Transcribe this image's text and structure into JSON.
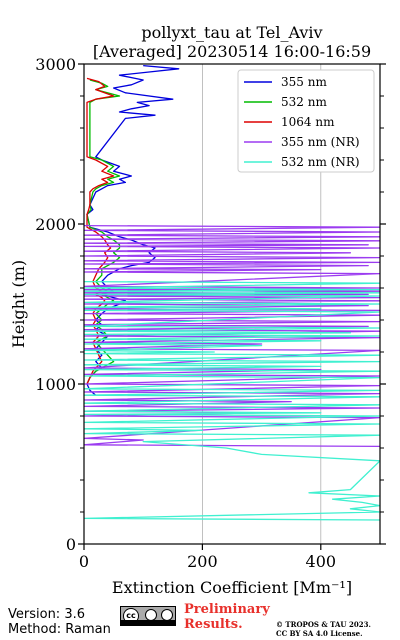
{
  "chart_data": {
    "type": "line",
    "title": "pollyxt_tau at Tel_Aviv",
    "subtitle": "[Averaged] 20230514 16:00-16:59",
    "xlabel": "Extinction Coefficient [Mm⁻¹]",
    "ylabel": "Height (m)",
    "xlim": [
      0,
      500
    ],
    "ylim": [
      0,
      3000
    ],
    "xticks": [
      0,
      200,
      400
    ],
    "yticks": [
      0,
      1000,
      2000,
      3000
    ],
    "grid": "x",
    "legend_position": "top-right",
    "series": [
      {
        "name": "355 nm",
        "color": "#0000dd",
        "points": [
          [
            100,
            2990
          ],
          [
            160,
            2970
          ],
          [
            110,
            2950
          ],
          [
            60,
            2930
          ],
          [
            100,
            2900
          ],
          [
            80,
            2870
          ],
          [
            50,
            2850
          ],
          [
            70,
            2820
          ],
          [
            150,
            2780
          ],
          [
            90,
            2760
          ],
          [
            110,
            2740
          ],
          [
            80,
            2720
          ],
          [
            60,
            2700
          ],
          [
            120,
            2680
          ],
          [
            70,
            2660
          ],
          [
            20,
            2420
          ],
          [
            30,
            2400
          ],
          [
            60,
            2360
          ],
          [
            50,
            2330
          ],
          [
            80,
            2300
          ],
          [
            60,
            2280
          ],
          [
            70,
            2260
          ],
          [
            40,
            2240
          ],
          [
            30,
            2220
          ],
          [
            20,
            2200
          ],
          [
            10,
            2120
          ],
          [
            15,
            2090
          ],
          [
            5,
            2060
          ],
          [
            10,
            1980
          ],
          [
            40,
            1950
          ],
          [
            60,
            1920
          ],
          [
            80,
            1900
          ],
          [
            100,
            1870
          ],
          [
            120,
            1850
          ],
          [
            110,
            1820
          ],
          [
            120,
            1790
          ],
          [
            110,
            1760
          ],
          [
            80,
            1740
          ],
          [
            60,
            1720
          ],
          [
            40,
            1680
          ],
          [
            30,
            1640
          ],
          [
            40,
            1600
          ],
          [
            50,
            1580
          ],
          [
            30,
            1560
          ],
          [
            50,
            1540
          ],
          [
            70,
            1520
          ],
          [
            60,
            1500
          ],
          [
            40,
            1470
          ],
          [
            30,
            1440
          ],
          [
            20,
            1400
          ],
          [
            30,
            1370
          ],
          [
            20,
            1340
          ],
          [
            40,
            1300
          ],
          [
            30,
            1260
          ],
          [
            20,
            1220
          ],
          [
            30,
            1180
          ],
          [
            20,
            1140
          ],
          [
            30,
            1100
          ],
          [
            20,
            1080
          ],
          [
            10,
            1040
          ],
          [
            5,
            1000
          ],
          [
            10,
            960
          ],
          [
            20,
            930
          ]
        ]
      },
      {
        "name": "532 nm",
        "color": "#00bb00",
        "points": [
          [
            10,
            2900
          ],
          [
            30,
            2880
          ],
          [
            40,
            2860
          ],
          [
            20,
            2840
          ],
          [
            60,
            2800
          ],
          [
            20,
            2780
          ],
          [
            10,
            2760
          ],
          [
            10,
            2420
          ],
          [
            30,
            2400
          ],
          [
            50,
            2360
          ],
          [
            40,
            2330
          ],
          [
            60,
            2300
          ],
          [
            40,
            2280
          ],
          [
            50,
            2260
          ],
          [
            30,
            2240
          ],
          [
            20,
            2220
          ],
          [
            15,
            2200
          ],
          [
            10,
            2120
          ],
          [
            12,
            2090
          ],
          [
            5,
            2060
          ],
          [
            10,
            1980
          ],
          [
            30,
            1950
          ],
          [
            40,
            1920
          ],
          [
            50,
            1900
          ],
          [
            60,
            1870
          ],
          [
            60,
            1850
          ],
          [
            50,
            1820
          ],
          [
            60,
            1790
          ],
          [
            50,
            1760
          ],
          [
            40,
            1740
          ],
          [
            30,
            1720
          ],
          [
            30,
            1680
          ],
          [
            20,
            1640
          ],
          [
            30,
            1600
          ],
          [
            40,
            1580
          ],
          [
            30,
            1560
          ],
          [
            40,
            1540
          ],
          [
            50,
            1520
          ],
          [
            40,
            1500
          ],
          [
            30,
            1470
          ],
          [
            20,
            1440
          ],
          [
            30,
            1400
          ],
          [
            20,
            1370
          ],
          [
            30,
            1340
          ],
          [
            40,
            1300
          ],
          [
            20,
            1260
          ],
          [
            30,
            1220
          ],
          [
            40,
            1180
          ],
          [
            50,
            1140
          ],
          [
            30,
            1100
          ],
          [
            20,
            1080
          ],
          [
            10,
            1040
          ],
          [
            5,
            1000
          ]
        ]
      },
      {
        "name": "1064 nm",
        "color": "#dd0000",
        "points": [
          [
            5,
            2910
          ],
          [
            25,
            2890
          ],
          [
            35,
            2860
          ],
          [
            20,
            2840
          ],
          [
            50,
            2800
          ],
          [
            20,
            2780
          ],
          [
            5,
            2760
          ],
          [
            5,
            2420
          ],
          [
            20,
            2400
          ],
          [
            40,
            2360
          ],
          [
            30,
            2330
          ],
          [
            50,
            2300
          ],
          [
            30,
            2280
          ],
          [
            40,
            2260
          ],
          [
            25,
            2240
          ],
          [
            15,
            2220
          ],
          [
            10,
            2200
          ],
          [
            10,
            2120
          ],
          [
            8,
            2090
          ],
          [
            5,
            2060
          ],
          [
            5,
            1980
          ],
          [
            20,
            1950
          ],
          [
            30,
            1920
          ],
          [
            35,
            1900
          ],
          [
            40,
            1870
          ],
          [
            45,
            1850
          ],
          [
            35,
            1820
          ],
          [
            40,
            1790
          ],
          [
            35,
            1760
          ],
          [
            30,
            1740
          ],
          [
            25,
            1720
          ],
          [
            20,
            1680
          ],
          [
            15,
            1640
          ],
          [
            20,
            1600
          ],
          [
            30,
            1580
          ],
          [
            20,
            1560
          ],
          [
            30,
            1540
          ],
          [
            35,
            1520
          ],
          [
            30,
            1500
          ],
          [
            20,
            1470
          ],
          [
            15,
            1440
          ],
          [
            20,
            1400
          ],
          [
            15,
            1370
          ],
          [
            20,
            1340
          ],
          [
            25,
            1300
          ],
          [
            15,
            1260
          ],
          [
            20,
            1220
          ],
          [
            25,
            1180
          ],
          [
            30,
            1140
          ],
          [
            20,
            1100
          ],
          [
            15,
            1080
          ],
          [
            10,
            1040
          ],
          [
            5,
            1000
          ]
        ]
      },
      {
        "name": "355 nm (NR)",
        "color": "#9b3cf0",
        "points": [
          [
            0,
            1990
          ],
          [
            500,
            1980
          ],
          [
            0,
            1960
          ],
          [
            500,
            1950
          ],
          [
            0,
            1930
          ],
          [
            500,
            1920
          ],
          [
            0,
            1905
          ],
          [
            500,
            1895
          ],
          [
            0,
            1880
          ],
          [
            480,
            1870
          ],
          [
            0,
            1860
          ],
          [
            500,
            1850
          ],
          [
            0,
            1830
          ],
          [
            450,
            1820
          ],
          [
            0,
            1800
          ],
          [
            500,
            1790
          ],
          [
            0,
            1770
          ],
          [
            500,
            1760
          ],
          [
            0,
            1750
          ],
          [
            480,
            1740
          ],
          [
            0,
            1720
          ],
          [
            400,
            1715
          ],
          [
            0,
            1700
          ],
          [
            500,
            1690
          ],
          [
            0,
            1610
          ],
          [
            500,
            1600
          ],
          [
            0,
            1590
          ],
          [
            500,
            1580
          ],
          [
            0,
            1570
          ],
          [
            480,
            1560
          ],
          [
            0,
            1550
          ],
          [
            500,
            1540
          ],
          [
            0,
            1530
          ],
          [
            500,
            1520
          ],
          [
            0,
            1500
          ],
          [
            480,
            1490
          ],
          [
            0,
            1470
          ],
          [
            500,
            1460
          ],
          [
            0,
            1440
          ],
          [
            500,
            1430
          ],
          [
            0,
            1400
          ],
          [
            500,
            1390
          ],
          [
            0,
            1370
          ],
          [
            480,
            1360
          ],
          [
            0,
            1340
          ],
          [
            500,
            1330
          ],
          [
            0,
            1300
          ],
          [
            500,
            1290
          ],
          [
            0,
            1260
          ],
          [
            300,
            1250
          ],
          [
            0,
            1220
          ],
          [
            500,
            1210
          ],
          [
            0,
            1100
          ],
          [
            400,
            1090
          ],
          [
            0,
            1060
          ],
          [
            500,
            1050
          ],
          [
            0,
            1000
          ],
          [
            500,
            990
          ],
          [
            0,
            950
          ],
          [
            500,
            940
          ],
          [
            0,
            900
          ],
          [
            350,
            890
          ],
          [
            0,
            860
          ],
          [
            500,
            850
          ],
          [
            0,
            830
          ],
          [
            300,
            820
          ],
          [
            0,
            800
          ],
          [
            500,
            790
          ],
          [
            0,
            660
          ],
          [
            100,
            650
          ],
          [
            0,
            620
          ],
          [
            500,
            610
          ]
        ]
      },
      {
        "name": "532 nm (NR)",
        "color": "#40f0d0",
        "points": [
          [
            0,
            1640
          ],
          [
            500,
            1630
          ],
          [
            0,
            1600
          ],
          [
            500,
            1590
          ],
          [
            0,
            1580
          ],
          [
            500,
            1570
          ],
          [
            0,
            1560
          ],
          [
            500,
            1550
          ],
          [
            0,
            1510
          ],
          [
            500,
            1500
          ],
          [
            0,
            1480
          ],
          [
            400,
            1470
          ],
          [
            0,
            1460
          ],
          [
            500,
            1450
          ],
          [
            0,
            1360
          ],
          [
            500,
            1350
          ],
          [
            0,
            1330
          ],
          [
            450,
            1320
          ],
          [
            0,
            1310
          ],
          [
            500,
            1300
          ],
          [
            0,
            1280
          ],
          [
            400,
            1270
          ],
          [
            0,
            1250
          ],
          [
            300,
            1240
          ],
          [
            0,
            1210
          ],
          [
            220,
            1200
          ],
          [
            0,
            1190
          ],
          [
            500,
            1180
          ],
          [
            0,
            1150
          ],
          [
            500,
            1140
          ],
          [
            0,
            1120
          ],
          [
            400,
            1110
          ],
          [
            0,
            1090
          ],
          [
            500,
            1080
          ],
          [
            0,
            1050
          ],
          [
            500,
            1040
          ],
          [
            0,
            970
          ],
          [
            500,
            960
          ],
          [
            0,
            930
          ],
          [
            500,
            920
          ],
          [
            0,
            880
          ],
          [
            500,
            870
          ],
          [
            0,
            830
          ],
          [
            400,
            820
          ],
          [
            0,
            810
          ],
          [
            500,
            800
          ],
          [
            0,
            760
          ],
          [
            500,
            750
          ],
          [
            0,
            720
          ],
          [
            200,
            710
          ],
          [
            0,
            690
          ],
          [
            500,
            680
          ],
          [
            100,
            640
          ],
          [
            240,
            600
          ],
          [
            300,
            560
          ],
          [
            500,
            520
          ],
          [
            450,
            340
          ],
          [
            380,
            320
          ],
          [
            500,
            300
          ],
          [
            420,
            280
          ],
          [
            470,
            260
          ],
          [
            500,
            240
          ],
          [
            450,
            220
          ],
          [
            500,
            200
          ],
          [
            0,
            160
          ],
          [
            500,
            150
          ]
        ]
      }
    ]
  },
  "footer": {
    "version": "Version: 3.6",
    "method": "Method: Raman",
    "preliminary": [
      "Preliminary",
      "Results."
    ],
    "copyright": [
      "© TROPOS & TAU 2023.",
      "CC BY SA 4.0 License."
    ]
  }
}
